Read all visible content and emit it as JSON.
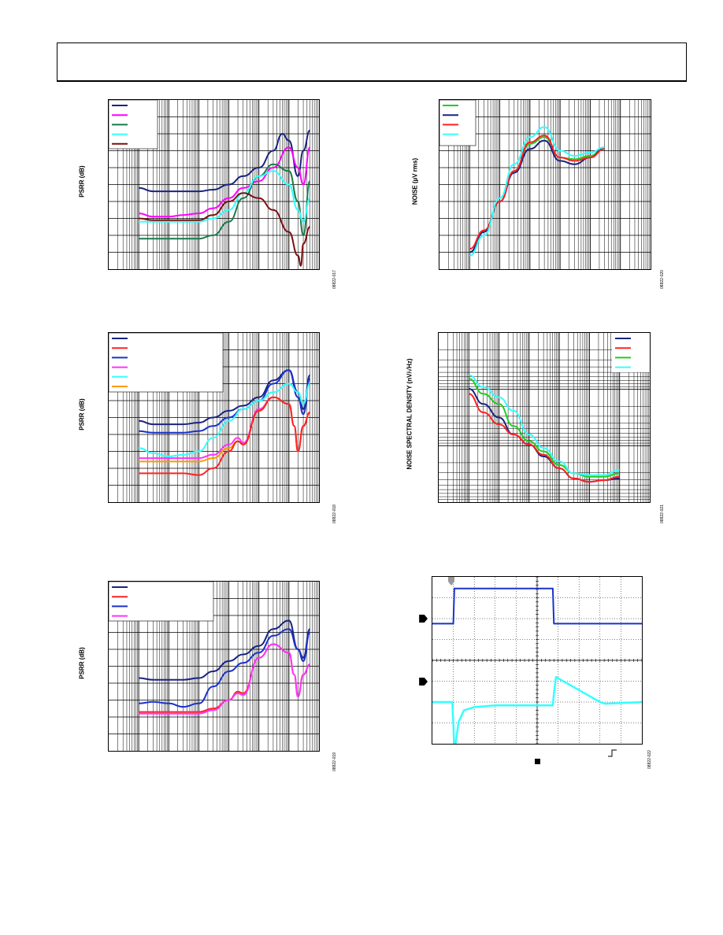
{
  "page": {
    "header": ""
  },
  "figures": [
    {
      "id": "fig-417",
      "ylabel": "PSRR (dB)",
      "figure_number": "08822-017",
      "legend_colors": [
        "#1a237e",
        "#ff00ff",
        "#1a7a4a",
        "#33ffff",
        "#7b1010"
      ],
      "chart_data": {
        "type": "line",
        "xscale": "log",
        "title": "",
        "xlabel": "",
        "ylabel": "PSRR (dB)",
        "series": [
          {
            "color": "#1a237e",
            "x": [
              10,
              30,
              100,
              300,
              1000,
              3000,
              10000,
              30000,
              100000,
              300000,
              600000,
              1000000,
              2000000,
              3000000,
              5000000
            ],
            "y": [
              0.52,
              0.54,
              0.54,
              0.54,
              0.54,
              0.53,
              0.5,
              0.45,
              0.4,
              0.3,
              0.2,
              0.24,
              0.45,
              0.3,
              0.18
            ]
          },
          {
            "color": "#ff00ff",
            "x": [
              10,
              30,
              100,
              300,
              1000,
              3000,
              10000,
              30000,
              100000,
              300000,
              1000000,
              2000000,
              3000000,
              5000000
            ],
            "y": [
              0.67,
              0.69,
              0.69,
              0.68,
              0.67,
              0.64,
              0.58,
              0.52,
              0.48,
              0.4,
              0.28,
              0.4,
              0.5,
              0.28
            ]
          },
          {
            "color": "#1a7a4a",
            "x": [
              10,
              30,
              100,
              300,
              1000,
              3000,
              10000,
              30000,
              100000,
              300000,
              1000000,
              2000000,
              3000000,
              5000000
            ],
            "y": [
              0.82,
              0.82,
              0.82,
              0.82,
              0.82,
              0.8,
              0.72,
              0.58,
              0.45,
              0.38,
              0.42,
              0.6,
              0.8,
              0.48
            ]
          },
          {
            "color": "#33ffff",
            "x": [
              10,
              30,
              100,
              300,
              1000,
              3000,
              10000,
              30000,
              100000,
              300000,
              1000000,
              2000000,
              3000000,
              5000000
            ],
            "y": [
              0.72,
              0.72,
              0.72,
              0.72,
              0.72,
              0.7,
              0.65,
              0.55,
              0.45,
              0.42,
              0.5,
              0.65,
              0.72,
              0.58
            ]
          },
          {
            "color": "#7b1010",
            "x": [
              10,
              30,
              100,
              300,
              1000,
              3000,
              10000,
              30000,
              100000,
              300000,
              1000000,
              2000000,
              2500000,
              3000000,
              5000000
            ],
            "y": [
              0.7,
              0.71,
              0.71,
              0.71,
              0.71,
              0.68,
              0.6,
              0.55,
              0.58,
              0.65,
              0.78,
              0.92,
              0.98,
              0.85,
              0.75
            ]
          }
        ]
      }
    },
    {
      "id": "fig-418",
      "ylabel": "PSRR (dB)",
      "figure_number": "08822-018",
      "legend_colors": [
        "#1a237e",
        "#ff2222",
        "#1a33cc",
        "#ff33ff",
        "#33ffff",
        "#ff9900"
      ],
      "chart_data": {
        "type": "line",
        "xscale": "log",
        "title": "",
        "xlabel": "",
        "ylabel": "PSRR (dB)",
        "series": [
          {
            "color": "#1a237e",
            "x": [
              10,
              30,
              100,
              300,
              1000,
              3000,
              10000,
              30000,
              100000,
              300000,
              1000000,
              2000000,
              3000000,
              5000000
            ],
            "y": [
              0.52,
              0.54,
              0.54,
              0.54,
              0.53,
              0.5,
              0.46,
              0.43,
              0.38,
              0.28,
              0.22,
              0.35,
              0.45,
              0.25
            ]
          },
          {
            "color": "#1a33cc",
            "x": [
              10,
              30,
              100,
              300,
              1000,
              3000,
              10000,
              30000,
              100000,
              300000,
              1000000,
              2000000,
              3000000,
              5000000
            ],
            "y": [
              0.58,
              0.59,
              0.59,
              0.59,
              0.58,
              0.55,
              0.5,
              0.45,
              0.4,
              0.3,
              0.22,
              0.38,
              0.48,
              0.27
            ]
          },
          {
            "color": "#33ffff",
            "x": [
              10,
              30,
              100,
              300,
              1000,
              3000,
              10000,
              30000,
              100000,
              300000,
              1000000,
              2000000,
              3000000,
              5000000
            ],
            "y": [
              0.68,
              0.71,
              0.73,
              0.72,
              0.7,
              0.62,
              0.52,
              0.45,
              0.4,
              0.35,
              0.3,
              0.35,
              0.42,
              0.3
            ]
          },
          {
            "color": "#ff33ff",
            "x": [
              10,
              30,
              100,
              300,
              1000,
              3000,
              10000,
              20000,
              30000,
              100000,
              300000,
              1000000,
              1500000,
              2000000,
              3000000,
              5000000
            ],
            "y": [
              0.74,
              0.74,
              0.74,
              0.74,
              0.74,
              0.72,
              0.66,
              0.62,
              0.65,
              0.45,
              0.38,
              0.42,
              0.55,
              0.7,
              0.55,
              0.47
            ]
          },
          {
            "color": "#ff9900",
            "x": [
              10,
              30,
              100,
              300,
              1000,
              3000,
              10000,
              20000,
              30000,
              100000,
              300000,
              1000000,
              1500000,
              2000000,
              3000000,
              5000000
            ],
            "y": [
              0.76,
              0.76,
              0.76,
              0.76,
              0.76,
              0.74,
              0.68,
              0.64,
              0.66,
              0.46,
              0.38,
              0.42,
              0.55,
              0.7,
              0.55,
              0.47
            ]
          },
          {
            "color": "#ff2222",
            "x": [
              10,
              30,
              100,
              300,
              1000,
              3000,
              10000,
              20000,
              30000,
              100000,
              300000,
              1000000,
              1500000,
              2000000,
              3000000,
              5000000
            ],
            "y": [
              0.83,
              0.83,
              0.83,
              0.83,
              0.84,
              0.8,
              0.7,
              0.64,
              0.66,
              0.46,
              0.38,
              0.42,
              0.55,
              0.7,
              0.55,
              0.47
            ]
          }
        ]
      }
    },
    {
      "id": "fig-419",
      "ylabel": "PSRR (dB)",
      "figure_number": "08822-019",
      "legend_colors": [
        "#1a237e",
        "#ff2222",
        "#1a33cc",
        "#ff33ff"
      ],
      "chart_data": {
        "type": "line",
        "xscale": "log",
        "title": "",
        "xlabel": "",
        "ylabel": "PSRR (dB)",
        "series": [
          {
            "color": "#1a237e",
            "x": [
              10,
              30,
              100,
              300,
              1000,
              3000,
              10000,
              30000,
              100000,
              300000,
              1000000,
              2000000,
              3000000,
              5000000
            ],
            "y": [
              0.57,
              0.58,
              0.58,
              0.58,
              0.57,
              0.53,
              0.47,
              0.43,
              0.38,
              0.28,
              0.23,
              0.4,
              0.45,
              0.28
            ]
          },
          {
            "color": "#1a33cc",
            "x": [
              10,
              30,
              100,
              300,
              1000,
              3000,
              10000,
              30000,
              100000,
              300000,
              1000000,
              2000000,
              3000000,
              5000000
            ],
            "y": [
              0.72,
              0.71,
              0.72,
              0.74,
              0.72,
              0.62,
              0.53,
              0.48,
              0.42,
              0.32,
              0.28,
              0.4,
              0.47,
              0.3
            ]
          },
          {
            "color": "#ff2222",
            "x": [
              10,
              30,
              100,
              300,
              1000,
              3000,
              10000,
              20000,
              30000,
              100000,
              300000,
              1000000,
              1500000,
              2000000,
              3000000,
              5000000
            ],
            "y": [
              0.77,
              0.77,
              0.77,
              0.77,
              0.77,
              0.75,
              0.7,
              0.65,
              0.66,
              0.45,
              0.37,
              0.42,
              0.55,
              0.68,
              0.55,
              0.49
            ]
          },
          {
            "color": "#ff33ff",
            "x": [
              10,
              30,
              100,
              300,
              1000,
              3000,
              10000,
              20000,
              30000,
              100000,
              300000,
              1000000,
              1500000,
              2000000,
              3000000,
              5000000
            ],
            "y": [
              0.78,
              0.78,
              0.78,
              0.78,
              0.78,
              0.76,
              0.7,
              0.66,
              0.67,
              0.45,
              0.37,
              0.42,
              0.55,
              0.68,
              0.55,
              0.49
            ]
          }
        ]
      }
    },
    {
      "id": "fig-420",
      "ylabel": "NOISE (µV rms)",
      "figure_number": "08822-020",
      "legend_colors": [
        "#22cc22",
        "#1a237e",
        "#ff2222",
        "#33ffff"
      ],
      "chart_data": {
        "type": "line",
        "xscale": "log",
        "title": "",
        "xlabel": "",
        "ylabel": "NOISE (µV rms)",
        "series": [
          {
            "color": "#22cc22",
            "x": [
              10,
              30,
              100,
              300,
              1000,
              3000,
              10000,
              30000,
              100000,
              300000
            ],
            "y": [
              0.9,
              0.78,
              0.6,
              0.42,
              0.26,
              0.22,
              0.34,
              0.35,
              0.33,
              0.28
            ]
          },
          {
            "color": "#1a237e",
            "x": [
              10,
              30,
              100,
              300,
              1000,
              3000,
              10000,
              30000,
              100000,
              300000
            ],
            "y": [
              0.9,
              0.78,
              0.6,
              0.43,
              0.29,
              0.24,
              0.36,
              0.38,
              0.34,
              0.28
            ]
          },
          {
            "color": "#ff2222",
            "x": [
              10,
              30,
              100,
              300,
              1000,
              3000,
              10000,
              30000,
              100000,
              300000
            ],
            "y": [
              0.88,
              0.77,
              0.6,
              0.42,
              0.25,
              0.21,
              0.34,
              0.36,
              0.34,
              0.29
            ]
          },
          {
            "color": "#33ffff",
            "x": [
              10,
              30,
              100,
              300,
              1000,
              3000,
              10000,
              30000,
              100000,
              300000
            ],
            "y": [
              0.92,
              0.8,
              0.58,
              0.38,
              0.22,
              0.16,
              0.3,
              0.33,
              0.31,
              0.28
            ]
          }
        ]
      }
    },
    {
      "id": "fig-421",
      "ylabel": "NOISE SPECTRAL DENSITY (nV/√Hz)",
      "figure_number": "08822-021",
      "legend_colors": [
        "#1a237e",
        "#ff2222",
        "#22cc22",
        "#33ffff"
      ],
      "chart_data": {
        "type": "line",
        "xscale": "log",
        "yscale": "log",
        "title": "",
        "xlabel": "",
        "ylabel": "NOISE SPECTRAL DENSITY (nV/√Hz)",
        "series": [
          {
            "color": "#1a237e",
            "x": [
              1,
              3,
              10,
              30,
              100,
              300,
              1000,
              3000,
              10000,
              30000,
              100000
            ],
            "y": [
              0.33,
              0.42,
              0.5,
              0.6,
              0.66,
              0.73,
              0.8,
              0.86,
              0.88,
              0.87,
              0.86
            ]
          },
          {
            "color": "#ff2222",
            "x": [
              1,
              3,
              10,
              30,
              100,
              300,
              1000,
              3000,
              10000,
              30000,
              100000
            ],
            "y": [
              0.36,
              0.47,
              0.54,
              0.6,
              0.66,
              0.72,
              0.8,
              0.86,
              0.88,
              0.87,
              0.85
            ]
          },
          {
            "color": "#22cc22",
            "x": [
              1,
              3,
              10,
              30,
              100,
              300,
              1000,
              3000,
              10000,
              30000,
              100000
            ],
            "y": [
              0.27,
              0.36,
              0.42,
              0.55,
              0.64,
              0.7,
              0.78,
              0.83,
              0.85,
              0.85,
              0.83
            ]
          },
          {
            "color": "#33ffff",
            "x": [
              1,
              3,
              10,
              30,
              100,
              300,
              1000,
              3000,
              10000,
              30000,
              100000
            ],
            "y": [
              0.25,
              0.32,
              0.38,
              0.46,
              0.6,
              0.68,
              0.76,
              0.83,
              0.84,
              0.84,
              0.81
            ]
          }
        ]
      }
    },
    {
      "id": "fig-422",
      "figure_number": "08822-022",
      "chart_data": {
        "type": "line",
        "title": "",
        "xlabel": "",
        "ylabel": "",
        "series": [
          {
            "color": "#1a33cc",
            "x": [
              0,
              0.2,
              0.21,
              0.5,
              1.15,
              1.16,
              2
            ],
            "y": [
              0.72,
              0.72,
              0.93,
              0.93,
              0.93,
              0.72,
              0.72
            ]
          },
          {
            "color": "#33ffff",
            "x": [
              0,
              0.19,
              0.2,
              0.21,
              0.25,
              0.3,
              0.4,
              0.6,
              1.15,
              1.16,
              1.18,
              1.6,
              1.65,
              2
            ],
            "y": [
              0.25,
              0.25,
              0.12,
              -0.05,
              0.13,
              0.2,
              0.22,
              0.23,
              0.23,
              0.3,
              0.4,
              0.25,
              0.24,
              0.25
            ]
          }
        ]
      }
    }
  ]
}
